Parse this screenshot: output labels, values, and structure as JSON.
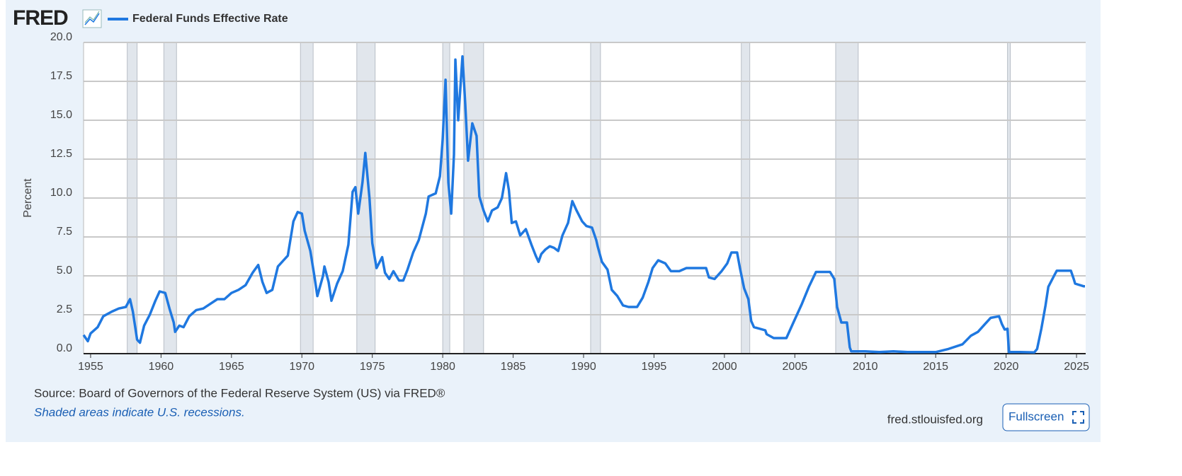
{
  "chart_data": {
    "type": "line",
    "logo": "FRED",
    "y_label": "Percent",
    "source": "Source: Board of Governors of the Federal Reserve System (US) via FRED®",
    "note": "Shaded areas indicate U.S. recessions.",
    "site": "fred.stlouisfed.org",
    "button": "Fullscreen",
    "xlim": [
      1954.5,
      2025.65
    ],
    "xticks": [
      1955,
      1960,
      1965,
      1970,
      1975,
      1980,
      1985,
      1990,
      1995,
      2000,
      2005,
      2010,
      2015,
      2020,
      2025
    ],
    "ylim": [
      0,
      20
    ],
    "yticks": [
      {
        "value": 0,
        "label": "0.0"
      },
      2.5,
      {
        "value": 5,
        "label": "5.0"
      },
      7.5,
      {
        "value": 10,
        "label": "10.0"
      },
      12.5,
      {
        "value": 15,
        "label": "15.0"
      },
      17.5,
      {
        "value": 20,
        "label": "20.0"
      }
    ],
    "grid": true,
    "recessions": [
      [
        1957.6,
        1958.3
      ],
      [
        1960.2,
        1961.1
      ],
      [
        1969.9,
        1970.8
      ],
      [
        1973.9,
        1975.2
      ],
      [
        1980.0,
        1980.5
      ],
      [
        1981.5,
        1982.9
      ],
      [
        1990.5,
        1991.2
      ],
      [
        2001.2,
        2001.8
      ],
      [
        2007.9,
        2009.5
      ],
      [
        2020.1,
        2020.3
      ]
    ],
    "x": [
      1954.5,
      1954.8,
      1955.0,
      1955.5,
      1955.9,
      1956.5,
      1957.0,
      1957.5,
      1957.8,
      1958.0,
      1958.3,
      1958.5,
      1958.8,
      1959.2,
      1959.6,
      1959.9,
      1960.3,
      1960.6,
      1960.9,
      1961.0,
      1961.3,
      1961.6,
      1962.0,
      1962.5,
      1963.0,
      1963.5,
      1964.0,
      1964.5,
      1965.0,
      1965.5,
      1966.0,
      1966.5,
      1966.9,
      1967.2,
      1967.5,
      1967.9,
      1968.3,
      1968.7,
      1969.0,
      1969.4,
      1969.7,
      1970.0,
      1970.2,
      1970.6,
      1970.9,
      1971.1,
      1971.5,
      1971.6,
      1971.9,
      1972.1,
      1972.5,
      1972.9,
      1973.3,
      1973.6,
      1973.8,
      1974.0,
      1974.3,
      1974.5,
      1974.8,
      1975.0,
      1975.3,
      1975.7,
      1975.9,
      1976.2,
      1976.5,
      1976.9,
      1977.2,
      1977.5,
      1977.9,
      1978.3,
      1978.8,
      1979.0,
      1979.5,
      1979.8,
      1980.0,
      1980.2,
      1980.4,
      1980.6,
      1980.8,
      1980.9,
      1981.1,
      1981.4,
      1981.6,
      1981.8,
      1981.9,
      1982.1,
      1982.4,
      1982.6,
      1982.9,
      1983.2,
      1983.5,
      1983.9,
      1984.2,
      1984.5,
      1984.7,
      1984.9,
      1985.2,
      1985.5,
      1985.9,
      1986.3,
      1986.6,
      1986.8,
      1987.0,
      1987.3,
      1987.6,
      1987.9,
      1988.2,
      1988.5,
      1988.9,
      1989.2,
      1989.5,
      1989.9,
      1990.2,
      1990.6,
      1990.9,
      1991.0,
      1991.3,
      1991.7,
      1992.0,
      1992.4,
      1992.8,
      1993.2,
      1993.8,
      1994.2,
      1994.6,
      1994.9,
      1995.3,
      1995.8,
      1996.2,
      1996.8,
      1997.3,
      1998.0,
      1998.7,
      1998.9,
      1999.3,
      1999.8,
      2000.2,
      2000.5,
      2000.9,
      2001.1,
      2001.4,
      2001.7,
      2001.9,
      2002.1,
      2002.9,
      2003.0,
      2003.5,
      2004.4,
      2004.9,
      2005.5,
      2006.0,
      2006.5,
      2007.5,
      2007.8,
      2008.0,
      2008.3,
      2008.7,
      2008.9,
      2009.0,
      2010.0,
      2011.0,
      2012.0,
      2013.0,
      2014.0,
      2015.0,
      2015.9,
      2016.9,
      2017.5,
      2018.0,
      2018.5,
      2018.9,
      2019.5,
      2019.7,
      2019.9,
      2020.1,
      2020.2,
      2021.0,
      2022.0,
      2022.2,
      2022.5,
      2022.8,
      2023.0,
      2023.4,
      2023.6,
      2024.6,
      2024.8,
      2024.9,
      2025.5,
      2025.6
    ],
    "series": [
      {
        "name": "Federal Funds Effective Rate",
        "color": "#1f78e0",
        "values": [
          1.2,
          0.8,
          1.3,
          1.7,
          2.4,
          2.7,
          2.9,
          3.0,
          3.5,
          2.7,
          0.9,
          0.7,
          1.8,
          2.5,
          3.4,
          4.0,
          3.9,
          2.9,
          2.0,
          1.4,
          1.8,
          1.7,
          2.4,
          2.8,
          2.9,
          3.2,
          3.5,
          3.5,
          3.9,
          4.1,
          4.4,
          5.2,
          5.7,
          4.6,
          3.9,
          4.1,
          5.6,
          6.0,
          6.3,
          8.5,
          9.1,
          9.0,
          7.9,
          6.6,
          4.9,
          3.7,
          5.0,
          5.6,
          4.6,
          3.4,
          4.5,
          5.3,
          7.0,
          10.4,
          10.7,
          9.0,
          11.0,
          12.9,
          10.0,
          7.1,
          5.5,
          6.2,
          5.2,
          4.8,
          5.3,
          4.7,
          4.7,
          5.4,
          6.5,
          7.3,
          9.0,
          10.1,
          10.3,
          11.4,
          13.8,
          17.6,
          11.0,
          9.0,
          12.8,
          18.9,
          15.0,
          19.1,
          16.0,
          12.4,
          13.2,
          14.8,
          14.0,
          10.1,
          9.2,
          8.5,
          9.2,
          9.4,
          10.0,
          11.6,
          10.5,
          8.4,
          8.5,
          7.6,
          8.0,
          7.0,
          6.3,
          5.9,
          6.4,
          6.7,
          6.9,
          6.8,
          6.6,
          7.6,
          8.4,
          9.8,
          9.2,
          8.5,
          8.2,
          8.1,
          7.3,
          6.9,
          5.9,
          5.4,
          4.1,
          3.7,
          3.1,
          3.0,
          3.0,
          3.6,
          4.6,
          5.5,
          6.0,
          5.8,
          5.3,
          5.3,
          5.5,
          5.5,
          5.5,
          4.9,
          4.8,
          5.3,
          5.8,
          6.5,
          6.5,
          5.5,
          4.2,
          3.5,
          2.1,
          1.7,
          1.5,
          1.25,
          1.0,
          1.0,
          2.0,
          3.2,
          4.3,
          5.25,
          5.25,
          4.8,
          3.0,
          2.0,
          2.0,
          0.4,
          0.15,
          0.15,
          0.1,
          0.15,
          0.1,
          0.1,
          0.1,
          0.3,
          0.6,
          1.15,
          1.4,
          1.9,
          2.3,
          2.4,
          1.9,
          1.55,
          1.6,
          0.1,
          0.1,
          0.08,
          0.3,
          1.6,
          3.1,
          4.3,
          5.0,
          5.33,
          5.33,
          4.8,
          4.5,
          4.33,
          4.33
        ]
      }
    ]
  }
}
